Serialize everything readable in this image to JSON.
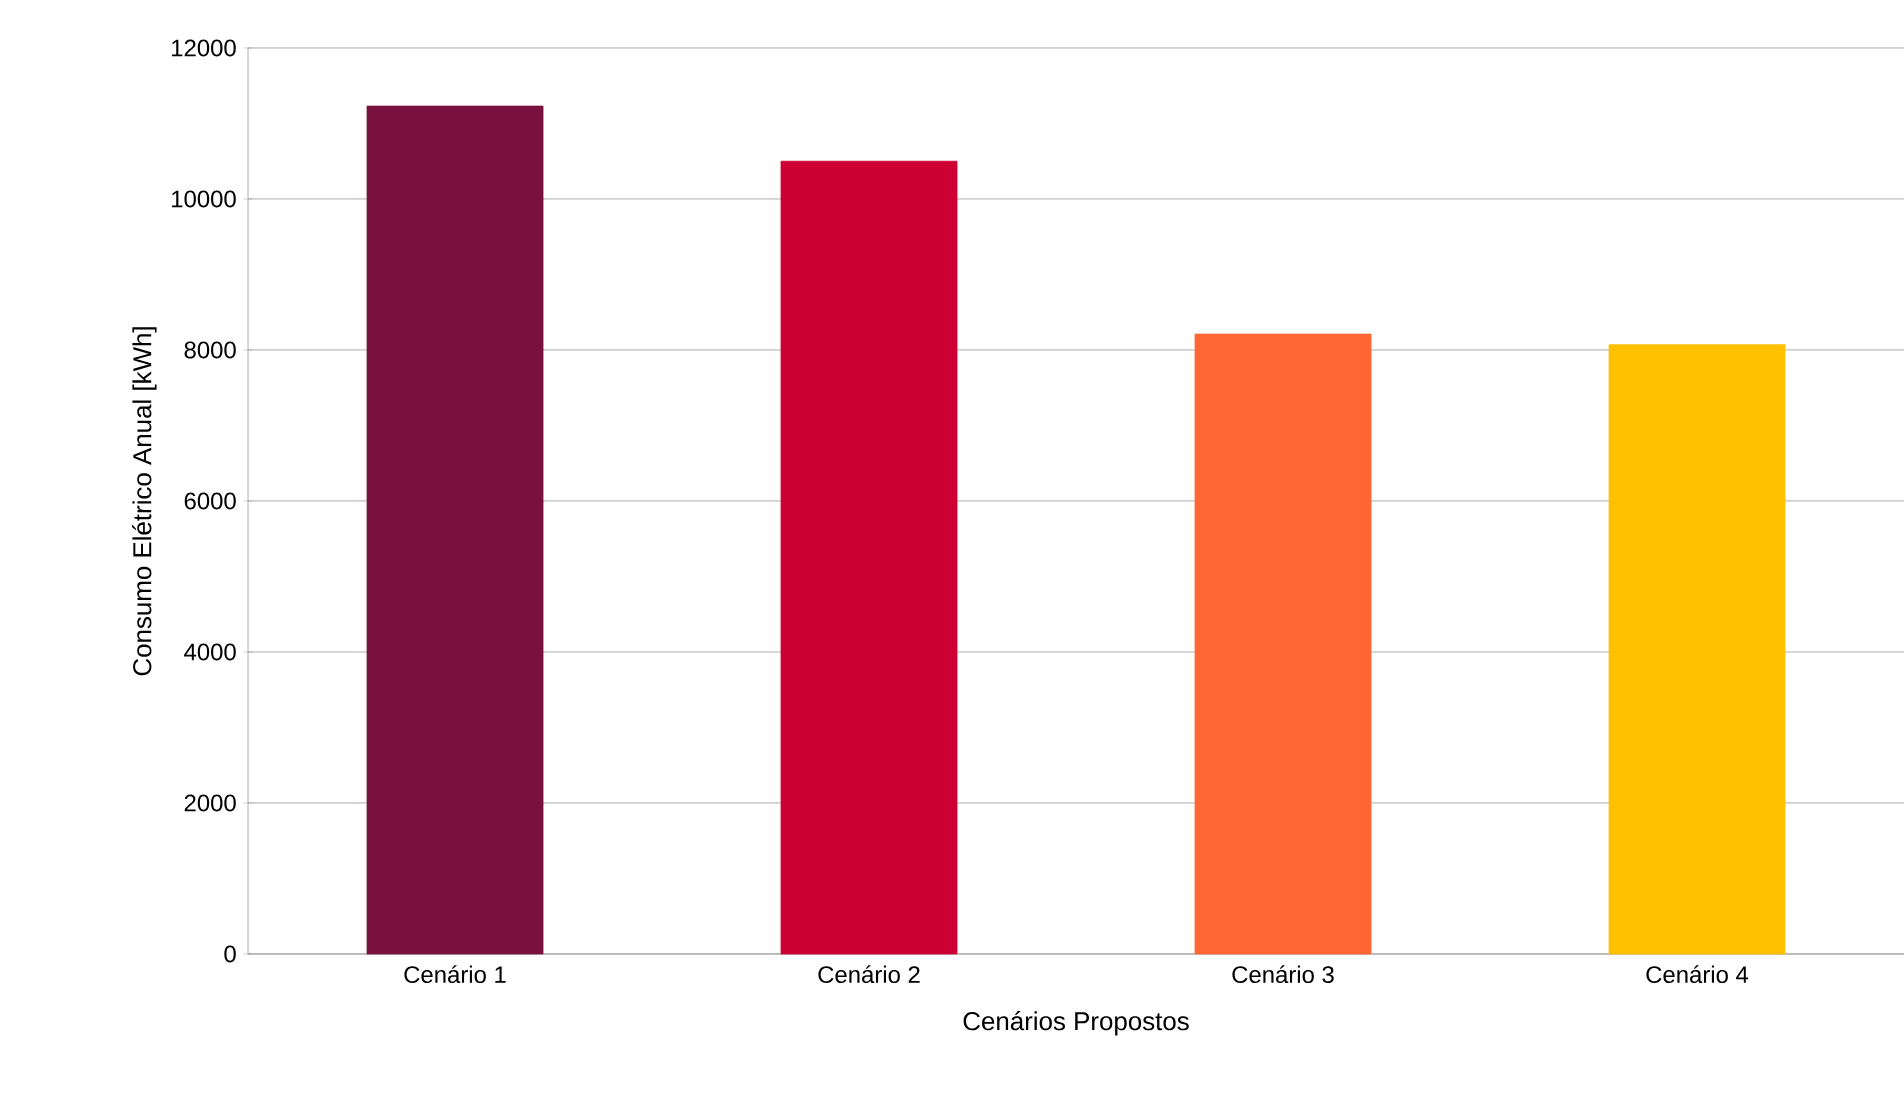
{
  "chart_data": {
    "type": "bar",
    "xlabel": "Cenários Propostos",
    "ylabel": "Consumo Elétrico Anual [kWh]",
    "categories": [
      "Cenário 1",
      "Cenário 2",
      "Cenário 3",
      "Cenário 4"
    ],
    "values": [
      11230,
      10500,
      8210,
      8070
    ],
    "colors": [
      "#7a1040",
      "#cc0033",
      "#ff6633",
      "#ffc000"
    ],
    "ylim": [
      0,
      12000
    ],
    "yticks": [
      0,
      2000,
      4000,
      6000,
      8000,
      10000,
      12000
    ],
    "grid": "y"
  }
}
